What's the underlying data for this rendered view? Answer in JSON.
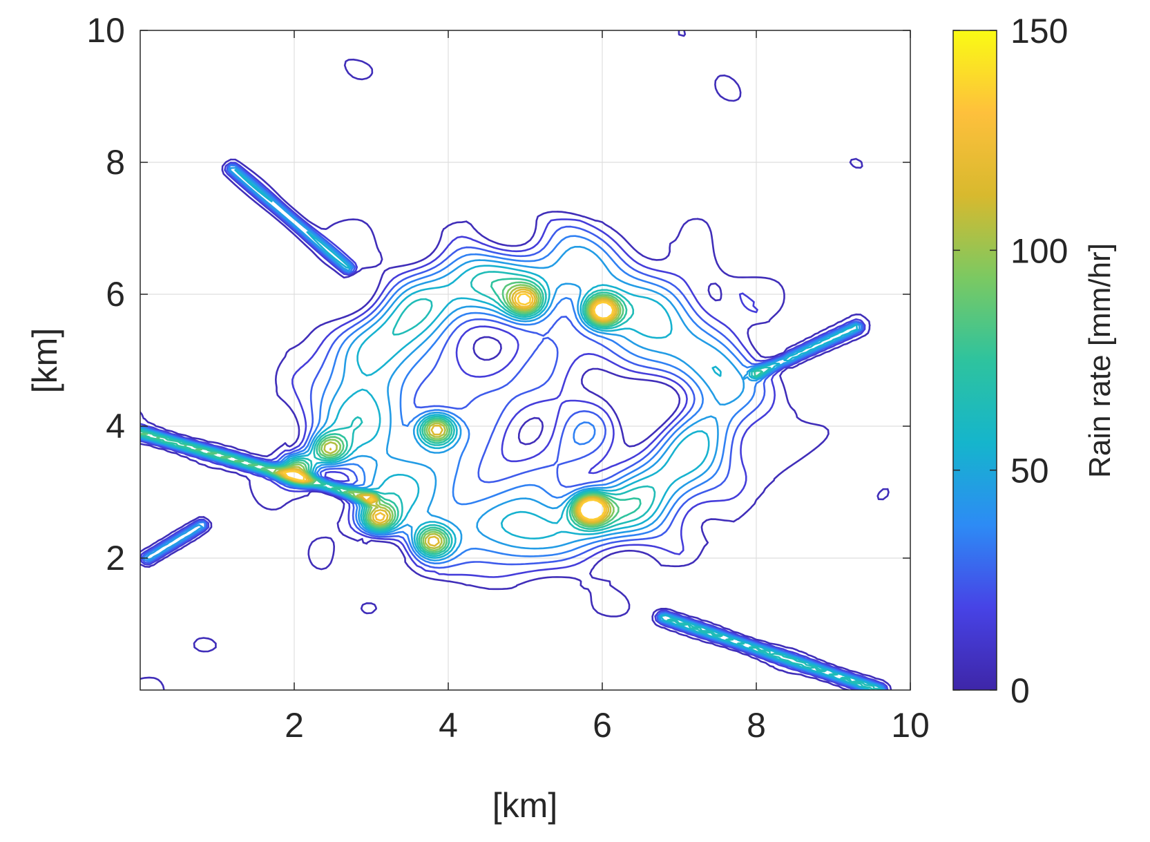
{
  "chart_data": {
    "type": "contour",
    "xlabel": "[km]",
    "ylabel": "[km]",
    "xlim": [
      0,
      10
    ],
    "ylim": [
      0,
      10
    ],
    "xticks": [
      "2",
      "4",
      "6",
      "8",
      "10"
    ],
    "yticks": [
      "2",
      "4",
      "6",
      "8",
      "10"
    ],
    "grid": true,
    "colorbar": {
      "label": "Rain rate [mm/hr]",
      "range": [
        0,
        150
      ],
      "ticks": [
        "0",
        "50",
        "100",
        "150"
      ],
      "colormap": "parula",
      "colors": [
        "#3e26a8",
        "#4743e6",
        "#2d8bf5",
        "#15b5cc",
        "#2ec39e",
        "#7bc962",
        "#d8b92e",
        "#fec03c",
        "#f9fb14"
      ]
    },
    "contour_levels": [
      5,
      15,
      25,
      35,
      45,
      55,
      65,
      75,
      85,
      95,
      105,
      115,
      125,
      135
    ],
    "features": [
      {
        "kind": "peak",
        "x": 6.0,
        "y": 5.75,
        "peak": 130
      },
      {
        "kind": "peak",
        "x": 5.85,
        "y": 2.75,
        "peak": 135
      },
      {
        "kind": "peak",
        "x": 3.85,
        "y": 3.95,
        "peak": 105
      },
      {
        "kind": "peak",
        "x": 5.0,
        "y": 5.9,
        "peak": 90
      },
      {
        "kind": "peak",
        "x": 2.05,
        "y": 3.35,
        "peak": 100
      },
      {
        "kind": "peak",
        "x": 3.1,
        "y": 2.6,
        "peak": 95
      },
      {
        "kind": "peak",
        "x": 3.8,
        "y": 2.25,
        "peak": 90
      },
      {
        "kind": "peak",
        "x": 2.45,
        "y": 3.65,
        "peak": 85
      },
      {
        "kind": "streak",
        "x": [
          0.0,
          3.0
        ],
        "y": [
          3.9,
          2.9
        ],
        "peak": 85
      },
      {
        "kind": "streak",
        "x": [
          6.8,
          9.6
        ],
        "y": [
          1.1,
          0.0
        ],
        "peak": 70
      },
      {
        "kind": "streak",
        "x": [
          1.2,
          2.7
        ],
        "y": [
          7.9,
          6.4
        ],
        "peak": 55
      },
      {
        "kind": "streak",
        "x": [
          8.0,
          9.3
        ],
        "y": [
          4.8,
          5.5
        ],
        "peak": 60
      },
      {
        "kind": "streak",
        "x": [
          0.1,
          0.8
        ],
        "y": [
          2.0,
          2.5
        ],
        "peak": 55
      }
    ]
  }
}
